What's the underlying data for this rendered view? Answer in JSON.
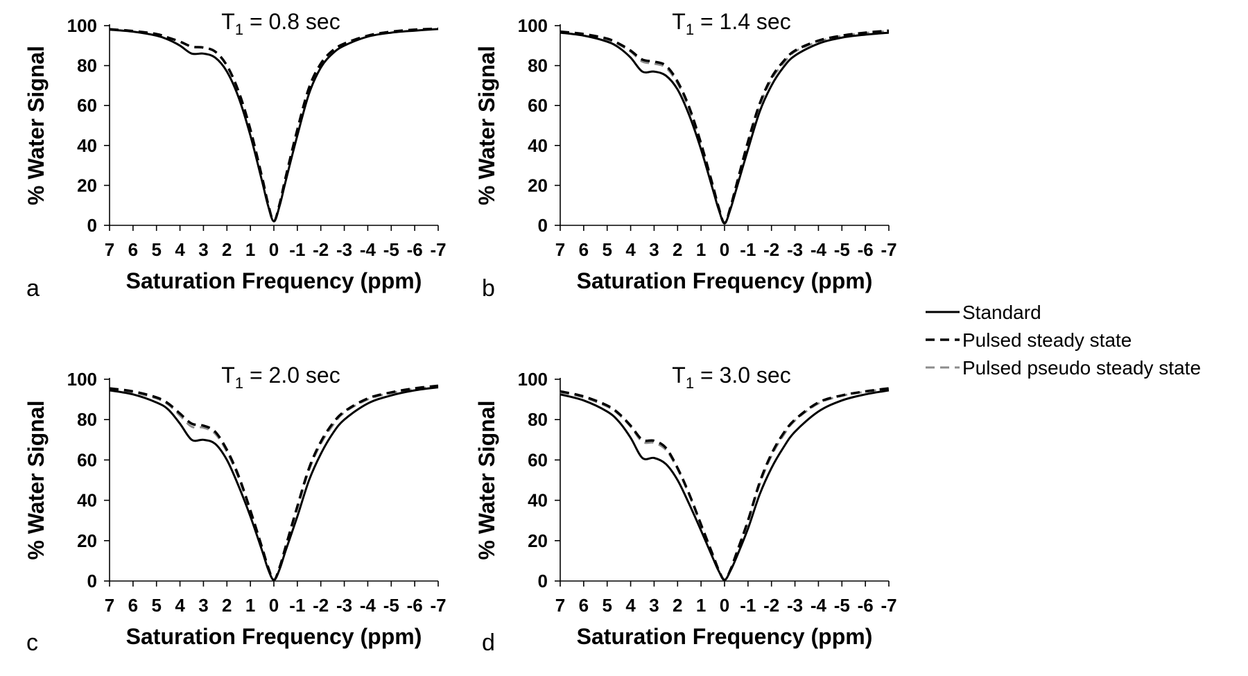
{
  "legend": {
    "entries": [
      {
        "label": "Standard",
        "color": "#000000",
        "dash": "solid"
      },
      {
        "label": "Pulsed steady state",
        "color": "#000000",
        "dash": "dashed"
      },
      {
        "label": "Pulsed pseudo steady state",
        "color": "#8c8c8c",
        "dash": "dashed"
      }
    ]
  },
  "chart_data": [
    {
      "type": "line",
      "panel_letter": "a",
      "title_main": "T",
      "title_sub": "1",
      "title_rest": " = 0.8 sec",
      "xlabel": "Saturation Frequency (ppm)",
      "ylabel": "% Water Signal",
      "xlim": [
        7,
        -7
      ],
      "ylim": [
        0,
        100
      ],
      "xticks": [
        7,
        6,
        5,
        4,
        3,
        2,
        1,
        0,
        -1,
        -2,
        -3,
        -4,
        -5,
        -6,
        -7
      ],
      "xtick_labels": [
        "7",
        "6",
        "5",
        "4",
        "3",
        "2",
        "1",
        "0",
        "-1",
        "-2",
        "-3",
        "-4",
        "-5",
        "-6",
        "-7"
      ],
      "yticks": [
        0,
        20,
        40,
        60,
        80,
        100
      ],
      "ytick_labels": [
        "0",
        "20",
        "40",
        "60",
        "80",
        "100"
      ],
      "x": [
        7,
        6,
        5,
        4.5,
        4,
        3.5,
        3,
        2.5,
        2,
        1.5,
        1,
        0.5,
        0.25,
        0,
        -0.25,
        -0.5,
        -1,
        -1.5,
        -2,
        -2.5,
        -3,
        -4,
        -5,
        -6,
        -7
      ],
      "series": [
        {
          "name": "Standard",
          "values": [
            98,
            97,
            95,
            93,
            90,
            86,
            86,
            84,
            77,
            64,
            45,
            22,
            10,
            2,
            10,
            22,
            45,
            66,
            79,
            86,
            90,
            94.5,
            96.5,
            97.5,
            98.3
          ]
        },
        {
          "name": "Pulsed steady state",
          "values": [
            98.2,
            97.3,
            95.8,
            94,
            92,
            89.5,
            89,
            87,
            80,
            67,
            48,
            24,
            11,
            2,
            11,
            24,
            48,
            69,
            81,
            87.5,
            91,
            95,
            97,
            98,
            98.5
          ]
        },
        {
          "name": "Pulsed pseudo steady state",
          "values": [
            98.2,
            97.3,
            95.8,
            94,
            92,
            89.5,
            89,
            87,
            80,
            67,
            48,
            24,
            11,
            2,
            11,
            24,
            48,
            69,
            81,
            87.5,
            91,
            95,
            97,
            98,
            98.5
          ]
        }
      ]
    },
    {
      "type": "line",
      "panel_letter": "b",
      "title_main": "T",
      "title_sub": "1",
      "title_rest": " = 1.4 sec",
      "xlabel": "Saturation Frequency (ppm)",
      "ylabel": "% Water Signal",
      "xlim": [
        7,
        -7
      ],
      "ylim": [
        0,
        100
      ],
      "xticks": [
        7,
        6,
        5,
        4,
        3,
        2,
        1,
        0,
        -1,
        -2,
        -3,
        -4,
        -5,
        -6,
        -7
      ],
      "xtick_labels": [
        "7",
        "6",
        "5",
        "4",
        "3",
        "2",
        "1",
        "0",
        "-1",
        "-2",
        "-3",
        "-4",
        "-5",
        "-6",
        "-7"
      ],
      "yticks": [
        0,
        20,
        40,
        60,
        80,
        100
      ],
      "ytick_labels": [
        "0",
        "20",
        "40",
        "60",
        "80",
        "100"
      ],
      "x": [
        7,
        6,
        5,
        4.5,
        4,
        3.5,
        3,
        2.5,
        2,
        1.5,
        1,
        0.5,
        0.25,
        0,
        -0.25,
        -0.5,
        -1,
        -1.5,
        -2,
        -2.5,
        -3,
        -4,
        -5,
        -6,
        -7
      ],
      "series": [
        {
          "name": "Standard",
          "values": [
            96.5,
            95,
            92,
            89,
            84,
            77,
            77,
            75,
            68,
            55,
            38,
            18,
            8,
            1,
            8,
            18,
            38,
            57,
            70,
            79,
            85,
            91,
            94,
            95.5,
            96.5
          ]
        },
        {
          "name": "Pulsed steady state",
          "values": [
            97,
            95.8,
            93.5,
            91,
            87.5,
            83,
            82,
            80,
            72,
            59,
            41,
            20,
            9,
            1,
            9,
            20,
            42,
            61,
            74,
            82,
            87.5,
            92.5,
            95,
            96.5,
            97.5
          ]
        },
        {
          "name": "Pulsed pseudo steady state",
          "values": [
            96.8,
            95.5,
            93,
            90.5,
            87,
            82,
            81,
            79,
            71,
            58,
            40,
            19.5,
            9,
            1,
            9,
            19.5,
            41,
            60,
            73,
            81,
            87,
            92,
            94.8,
            96.3,
            97.3
          ]
        }
      ]
    },
    {
      "type": "line",
      "panel_letter": "c",
      "title_main": "T",
      "title_sub": "1",
      "title_rest": " = 2.0 sec",
      "xlabel": "Saturation Frequency (ppm)",
      "ylabel": "% Water Signal",
      "xlim": [
        7,
        -7
      ],
      "ylim": [
        0,
        100
      ],
      "xticks": [
        7,
        6,
        5,
        4,
        3,
        2,
        1,
        0,
        -1,
        -2,
        -3,
        -4,
        -5,
        -6,
        -7
      ],
      "xtick_labels": [
        "7",
        "6",
        "5",
        "4",
        "3",
        "2",
        "1",
        "0",
        "-1",
        "-2",
        "-3",
        "-4",
        "-5",
        "-6",
        "-7"
      ],
      "yticks": [
        0,
        20,
        40,
        60,
        80,
        100
      ],
      "ytick_labels": [
        "0",
        "20",
        "40",
        "60",
        "80",
        "100"
      ],
      "x": [
        7,
        6,
        5,
        4.5,
        4,
        3.5,
        3,
        2.5,
        2,
        1.5,
        1,
        0.5,
        0.25,
        0,
        -0.25,
        -0.5,
        -1,
        -1.5,
        -2,
        -2.5,
        -3,
        -4,
        -5,
        -6,
        -7
      ],
      "series": [
        {
          "name": "Standard",
          "values": [
            94.5,
            92.5,
            88.5,
            85,
            78,
            70,
            70,
            68,
            60,
            47,
            32,
            15,
            6,
            0.5,
            6,
            15,
            32,
            50,
            63,
            73,
            80,
            88,
            92,
            94.5,
            96
          ]
        },
        {
          "name": "Pulsed steady state",
          "values": [
            95.5,
            94,
            91,
            88,
            83,
            78,
            77,
            74,
            65,
            52,
            35,
            16.5,
            7,
            0.5,
            7,
            17,
            37,
            56,
            69,
            78,
            84,
            90.5,
            93.5,
            95.5,
            96.8
          ]
        },
        {
          "name": "Pulsed pseudo steady state",
          "values": [
            95.2,
            93.5,
            90.5,
            87.5,
            82,
            76.5,
            76,
            73,
            64,
            51,
            34.5,
            16,
            7,
            0.5,
            7,
            16.5,
            36,
            55,
            68,
            77,
            83.5,
            90,
            93.2,
            95.2,
            96.5
          ]
        }
      ]
    },
    {
      "type": "line",
      "panel_letter": "d",
      "title_main": "T",
      "title_sub": "1",
      "title_rest": " = 3.0 sec",
      "xlabel": "Saturation Frequency (ppm)",
      "ylabel": "% Water Signal",
      "xlim": [
        7,
        -7
      ],
      "ylim": [
        0,
        100
      ],
      "xticks": [
        7,
        6,
        5,
        4,
        3,
        2,
        1,
        0,
        -1,
        -2,
        -3,
        -4,
        -5,
        -6,
        -7
      ],
      "xtick_labels": [
        "7",
        "6",
        "5",
        "4",
        "3",
        "2",
        "1",
        "0",
        "-1",
        "-2",
        "-3",
        "-4",
        "-5",
        "-6",
        "-7"
      ],
      "yticks": [
        0,
        20,
        40,
        60,
        80,
        100
      ],
      "ytick_labels": [
        "0",
        "20",
        "40",
        "60",
        "80",
        "100"
      ],
      "x": [
        7,
        6,
        5,
        4.5,
        4,
        3.5,
        3,
        2.5,
        2,
        1.5,
        1,
        0.5,
        0.25,
        0,
        -0.25,
        -0.5,
        -1,
        -1.5,
        -2,
        -2.5,
        -3,
        -4,
        -5,
        -6,
        -7
      ],
      "series": [
        {
          "name": "Standard",
          "values": [
            92.5,
            89.5,
            84,
            79,
            71,
            61,
            61,
            58,
            50,
            38,
            25,
            11.5,
            5,
            0.5,
            5,
            11.5,
            26,
            43,
            56,
            66,
            74,
            84,
            89.5,
            92.5,
            94.5
          ]
        },
        {
          "name": "Pulsed steady state",
          "values": [
            94,
            91.5,
            87,
            83,
            77,
            70,
            69.5,
            66,
            56,
            43,
            28,
            13,
            5.5,
            0.5,
            5.5,
            13.5,
            30,
            49,
            63,
            73,
            80,
            88.5,
            92,
            94,
            95.5
          ]
        },
        {
          "name": "Pulsed pseudo steady state",
          "values": [
            93.6,
            91,
            86.5,
            82.5,
            76.5,
            69,
            68.5,
            65,
            55.5,
            42.5,
            27.5,
            12.8,
            5.5,
            0.5,
            5.5,
            13.3,
            29.5,
            48,
            62,
            72,
            79.5,
            88,
            91.8,
            93.8,
            95.3
          ]
        }
      ]
    }
  ]
}
